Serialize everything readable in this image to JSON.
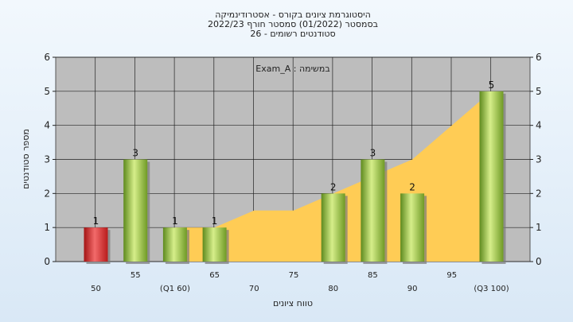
{
  "chart_data": {
    "type": "bar",
    "title_lines": [
      "היסטוגרמת ציונים בקורס - אסטרודינמיקה",
      "בסמסטר  (01/2022)  סמסטר חורף  2022/23",
      "26 - סטודנטים רשומים"
    ],
    "assignment_label": "Exam_A : במשימה",
    "xlabel": "טווח ציונים",
    "ylabel": "מספר סטודנטים",
    "x_ticks": [
      "50",
      "55",
      "(Q1 60)",
      "65",
      "70",
      "75",
      "80",
      "85",
      "90",
      "95",
      "(Q3 100)"
    ],
    "values": [
      1,
      3,
      1,
      1,
      0,
      0,
      2,
      3,
      2,
      0,
      5
    ],
    "value_labels": [
      "1",
      "3",
      "1",
      "1",
      "",
      "",
      "2",
      "3",
      "2",
      "",
      "5"
    ],
    "highlight_index": 0,
    "area_series": [
      null,
      null,
      1,
      1,
      1.5,
      1.5,
      2,
      2.5,
      3,
      4,
      5
    ],
    "ylim": [
      0,
      6
    ],
    "y_ticks": [
      0,
      1,
      2,
      3,
      4,
      5,
      6
    ],
    "grid": true,
    "colors": {
      "bar": "#8fbf3a",
      "bar_highlight": "#d42a2a",
      "area": "#ffcc55",
      "plot_bg": "#bdbdbd"
    }
  }
}
